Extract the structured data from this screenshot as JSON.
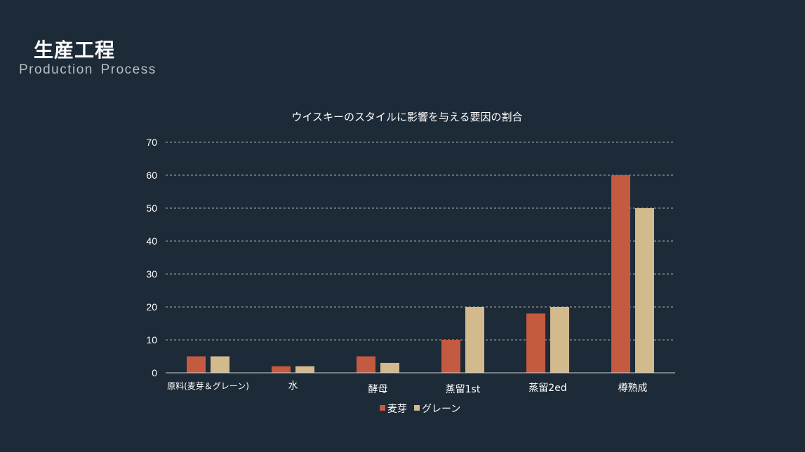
{
  "slide": {
    "title": "生産工程",
    "subtitle": "Production Process"
  },
  "colors": {
    "background": "#1d2a37",
    "malt": "#c45a40",
    "grain": "#d3ba8d",
    "grid": "#ffffff"
  },
  "chart_data": {
    "type": "bar",
    "title": "ウイスキーのスタイルに影響を与える要因の割合",
    "categories": [
      "原料(麦芽＆グレーン)",
      "水",
      "酵母",
      "蒸留1st",
      "蒸留2ed",
      "樽熟成"
    ],
    "series": [
      {
        "name": "麦芽",
        "values": [
          5,
          2,
          5,
          10,
          18,
          60
        ]
      },
      {
        "name": "グレーン",
        "values": [
          5,
          2,
          3,
          20,
          20,
          50
        ]
      }
    ],
    "ylim": [
      0,
      70
    ],
    "yticks": [
      0,
      10,
      20,
      30,
      40,
      50,
      60,
      70
    ],
    "grid": true,
    "legend": "bottom"
  }
}
